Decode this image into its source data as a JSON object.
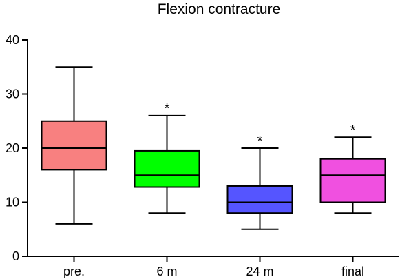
{
  "chart_data": {
    "type": "box",
    "title": "Flexion contracture",
    "xlabel": "",
    "ylabel": "",
    "ylim": [
      0,
      40
    ],
    "yticks": [
      0,
      10,
      20,
      30,
      40
    ],
    "categories": [
      "pre.",
      "6 m",
      "24 m",
      "final"
    ],
    "boxes": [
      {
        "category": "pre.",
        "min": 6,
        "q1": 16,
        "median": 20,
        "q3": 25,
        "max": 35,
        "color": "#F88080",
        "significance": ""
      },
      {
        "category": "6 m",
        "min": 8,
        "q1": 12.8,
        "median": 15,
        "q3": 19.5,
        "max": 26,
        "color": "#00FF00",
        "significance": "*"
      },
      {
        "category": "24 m",
        "min": 5,
        "q1": 8,
        "median": 10,
        "q3": 13,
        "max": 20,
        "color": "#5555FF",
        "significance": "*"
      },
      {
        "category": "final",
        "min": 8,
        "q1": 10,
        "median": 15,
        "q3": 18,
        "max": 22,
        "color": "#F050E0",
        "significance": "*"
      }
    ],
    "grid": false,
    "legend": "none"
  }
}
